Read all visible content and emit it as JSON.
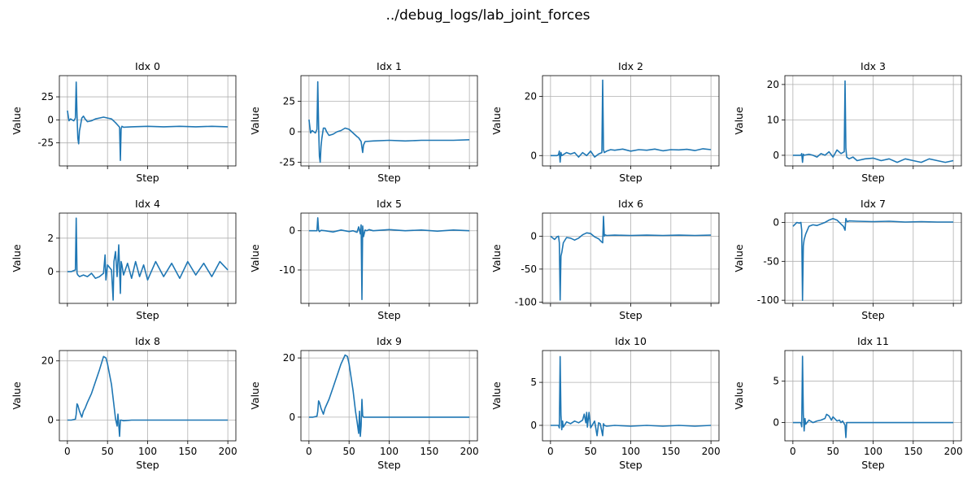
{
  "figure_title": "../debug_logs/lab_joint_forces",
  "chart_data": [
    {
      "type": "line",
      "title": "Idx 0",
      "xlabel": "Step",
      "ylabel": "Value",
      "xlim": [
        -10,
        210
      ],
      "ylim": [
        -50,
        48
      ],
      "xticks": [
        0,
        50,
        100,
        150,
        200
      ],
      "yticks": [
        -25,
        0,
        25
      ],
      "grid": true,
      "line_color": "#1f77b4",
      "x": [
        0,
        2,
        4,
        6,
        8,
        10,
        11,
        12,
        13,
        14,
        15,
        16,
        18,
        20,
        22,
        25,
        30,
        35,
        40,
        45,
        50,
        55,
        60,
        62,
        65,
        66,
        67,
        68,
        70,
        80,
        100,
        120,
        140,
        160,
        180,
        200
      ],
      "values": [
        10,
        -1,
        1,
        0,
        -1,
        2,
        41,
        5,
        -20,
        -26,
        -12,
        -8,
        2,
        4,
        1,
        -2,
        -1,
        1,
        2,
        3,
        2,
        1,
        -3,
        -5,
        -8,
        -44,
        -10,
        -7,
        -8,
        -7.5,
        -7,
        -7.5,
        -7,
        -7.5,
        -7,
        -7.5
      ]
    },
    {
      "type": "line",
      "title": "Idx 1",
      "xlabel": "Step",
      "ylabel": "Value",
      "xlim": [
        -10,
        210
      ],
      "ylim": [
        -28,
        46
      ],
      "xticks": [
        0,
        50,
        100,
        150,
        200
      ],
      "yticks": [
        -25,
        0,
        25
      ],
      "grid": true,
      "line_color": "#1f77b4",
      "x": [
        0,
        2,
        4,
        6,
        8,
        10,
        11,
        12,
        13,
        14,
        15,
        16,
        18,
        20,
        22,
        25,
        30,
        35,
        40,
        45,
        50,
        55,
        60,
        62,
        65,
        67,
        68,
        70,
        80,
        100,
        120,
        140,
        160,
        180,
        200
      ],
      "values": [
        10,
        -1,
        1,
        0,
        -1,
        2,
        41,
        5,
        -20,
        -25,
        -12,
        -6,
        3,
        3,
        0,
        -3,
        -2,
        0,
        1,
        3,
        2,
        -1,
        -4,
        -5,
        -8,
        -17,
        -11,
        -8,
        -7.5,
        -7,
        -7.5,
        -7,
        -7,
        -7,
        -6.5
      ]
    },
    {
      "type": "line",
      "title": "Idx 2",
      "xlabel": "Step",
      "ylabel": "Value",
      "xlim": [
        -10,
        210
      ],
      "ylim": [
        -3.5,
        27
      ],
      "xticks": [
        0,
        50,
        100,
        150,
        200
      ],
      "yticks": [
        0,
        20
      ],
      "grid": true,
      "line_color": "#1f77b4",
      "x": [
        0,
        8,
        10,
        11,
        12,
        13,
        14,
        20,
        25,
        30,
        35,
        40,
        45,
        50,
        55,
        60,
        64,
        65,
        66,
        67,
        70,
        75,
        80,
        90,
        100,
        110,
        120,
        130,
        140,
        150,
        160,
        170,
        180,
        190,
        200
      ],
      "values": [
        0,
        0,
        0.3,
        1.5,
        -2.2,
        1,
        0,
        1,
        0.5,
        1,
        -0.5,
        1,
        0,
        1.5,
        -0.5,
        0.5,
        1,
        25.5,
        2,
        1,
        1.5,
        2,
        1.8,
        2.2,
        1.5,
        2,
        1.8,
        2.2,
        1.6,
        2,
        1.9,
        2.1,
        1.7,
        2.3,
        2
      ]
    },
    {
      "type": "line",
      "title": "Idx 3",
      "xlabel": "Step",
      "ylabel": "Value",
      "xlim": [
        -10,
        210
      ],
      "ylim": [
        -3,
        22.5
      ],
      "xticks": [
        0,
        50,
        100,
        150,
        200
      ],
      "yticks": [
        0,
        10,
        20
      ],
      "grid": true,
      "line_color": "#1f77b4",
      "x": [
        0,
        10,
        11,
        12,
        13,
        14,
        20,
        25,
        30,
        35,
        40,
        45,
        50,
        55,
        60,
        64,
        65,
        66,
        67,
        70,
        75,
        80,
        90,
        100,
        110,
        120,
        130,
        140,
        150,
        160,
        170,
        180,
        190,
        200
      ],
      "values": [
        0,
        0,
        0.5,
        -2,
        0.3,
        0,
        0.3,
        0,
        -0.5,
        0.5,
        0,
        1,
        -0.5,
        1.5,
        0.5,
        1,
        21,
        2,
        -0.5,
        -1,
        -0.5,
        -1.5,
        -1,
        -0.8,
        -1.5,
        -1,
        -2,
        -1,
        -1.5,
        -2,
        -1,
        -1.5,
        -2,
        -1.5
      ]
    },
    {
      "type": "line",
      "title": "Idx 4",
      "xlabel": "Step",
      "ylabel": "Value",
      "xlim": [
        -10,
        210
      ],
      "ylim": [
        -1.9,
        3.5
      ],
      "xticks": [
        0,
        50,
        100,
        150,
        200
      ],
      "yticks": [
        0,
        2
      ],
      "grid": true,
      "line_color": "#1f77b4",
      "x": [
        0,
        5,
        10,
        11,
        12,
        13,
        15,
        20,
        25,
        30,
        35,
        40,
        45,
        47,
        48,
        50,
        55,
        57,
        58,
        60,
        62,
        64,
        66,
        67,
        68,
        70,
        75,
        80,
        85,
        90,
        95,
        100,
        110,
        120,
        130,
        140,
        150,
        160,
        170,
        180,
        190,
        200
      ],
      "values": [
        0,
        0,
        0.1,
        3.2,
        -0.1,
        -0.2,
        -0.3,
        -0.2,
        -0.3,
        -0.1,
        -0.4,
        -0.3,
        -0.1,
        1,
        -0.5,
        0.4,
        0.1,
        -1.7,
        0.6,
        1.2,
        -0.3,
        1.6,
        -1.3,
        0.6,
        0.4,
        -0.2,
        0.5,
        -0.4,
        0.6,
        -0.3,
        0.4,
        -0.5,
        0.6,
        -0.3,
        0.5,
        -0.4,
        0.6,
        -0.2,
        0.5,
        -0.3,
        0.6,
        0.1
      ]
    },
    {
      "type": "line",
      "title": "Idx 5",
      "xlabel": "Step",
      "ylabel": "Value",
      "xlim": [
        -10,
        210
      ],
      "ylim": [
        -18.5,
        4.5
      ],
      "xticks": [
        0,
        50,
        100,
        150,
        200
      ],
      "yticks": [
        -10,
        0
      ],
      "grid": true,
      "line_color": "#1f77b4",
      "x": [
        0,
        10,
        11,
        12,
        13,
        15,
        20,
        30,
        40,
        50,
        55,
        60,
        62,
        64,
        65,
        66,
        67,
        68,
        70,
        72,
        75,
        80,
        100,
        120,
        140,
        160,
        180,
        200
      ],
      "values": [
        0,
        0,
        3.3,
        0.2,
        -0.2,
        0.1,
        0,
        -0.3,
        0.2,
        -0.2,
        0,
        -0.4,
        1,
        -0.8,
        1.5,
        -17.5,
        1.2,
        -1.5,
        0.2,
        0,
        0.3,
        0,
        0.3,
        0,
        0.2,
        -0.1,
        0.2,
        0
      ]
    },
    {
      "type": "line",
      "title": "Idx 6",
      "xlabel": "Step",
      "ylabel": "Value",
      "xlim": [
        -10,
        210
      ],
      "ylim": [
        -102,
        35
      ],
      "xticks": [
        0,
        50,
        100,
        150,
        200
      ],
      "yticks": [
        -100,
        -50,
        0
      ],
      "grid": true,
      "line_color": "#1f77b4",
      "x": [
        0,
        5,
        8,
        10,
        11,
        12,
        13,
        14,
        16,
        20,
        25,
        30,
        35,
        40,
        45,
        50,
        55,
        60,
        63,
        65,
        66,
        67,
        68,
        70,
        80,
        100,
        120,
        140,
        160,
        180,
        200
      ],
      "values": [
        0,
        -5,
        -1,
        0,
        -10,
        -97,
        -30,
        -25,
        -10,
        -2,
        -3,
        -6,
        -3,
        2,
        5,
        4,
        -1,
        -4,
        -8,
        -10,
        30,
        0,
        2,
        1,
        1.5,
        1,
        1.5,
        1,
        1.5,
        1,
        1.5
      ]
    },
    {
      "type": "line",
      "title": "Idx 7",
      "xlabel": "Step",
      "ylabel": "Value",
      "xlim": [
        -10,
        210
      ],
      "ylim": [
        -104,
        12
      ],
      "xticks": [
        0,
        50,
        100,
        150,
        200
      ],
      "yticks": [
        -100,
        -50,
        0
      ],
      "grid": true,
      "line_color": "#1f77b4",
      "x": [
        0,
        3,
        5,
        8,
        10,
        11,
        12,
        13,
        14,
        16,
        20,
        25,
        30,
        35,
        40,
        45,
        50,
        55,
        60,
        63,
        65,
        66,
        67,
        68,
        70,
        80,
        100,
        120,
        140,
        160,
        180,
        200
      ],
      "values": [
        -5,
        -2,
        0,
        -1,
        0,
        -10,
        -100,
        -30,
        -22,
        -15,
        -5,
        -3,
        -4,
        -2,
        0,
        3,
        5,
        3,
        -2,
        -5,
        -10,
        5,
        2,
        1,
        2,
        1.5,
        1,
        1.5,
        0.5,
        1,
        0.5,
        0.5
      ]
    },
    {
      "type": "line",
      "title": "Idx 8",
      "xlabel": "Step",
      "ylabel": "Value",
      "xlim": [
        -10,
        210
      ],
      "ylim": [
        -7,
        23.5
      ],
      "xticks": [
        0,
        50,
        100,
        150,
        200
      ],
      "yticks": [
        0,
        20
      ],
      "grid": true,
      "line_color": "#1f77b4",
      "x": [
        0,
        5,
        10,
        11,
        12,
        13,
        15,
        18,
        20,
        22,
        25,
        30,
        35,
        40,
        45,
        48,
        50,
        55,
        58,
        60,
        62,
        63,
        64,
        65,
        66,
        67,
        70,
        80,
        100,
        120,
        140,
        160,
        180,
        200
      ],
      "values": [
        0,
        0,
        0.3,
        2,
        5.5,
        5,
        3,
        1,
        3,
        4,
        6,
        9,
        13,
        17,
        21.5,
        21,
        19,
        12,
        5,
        0.5,
        -2,
        2,
        -1.5,
        -5.5,
        0,
        0,
        -0.2,
        0,
        0,
        0,
        0,
        0,
        0,
        0
      ]
    },
    {
      "type": "line",
      "title": "Idx 9",
      "xlabel": "Step",
      "ylabel": "Value",
      "xlim": [
        -10,
        210
      ],
      "ylim": [
        -8,
        22.5
      ],
      "xticks": [
        0,
        50,
        100,
        150,
        200
      ],
      "yticks": [
        0,
        20
      ],
      "grid": true,
      "line_color": "#1f77b4",
      "x": [
        0,
        5,
        10,
        11,
        12,
        13,
        15,
        18,
        20,
        25,
        30,
        35,
        40,
        45,
        48,
        50,
        55,
        58,
        60,
        62,
        63,
        64,
        65,
        66,
        67,
        68,
        70,
        80,
        100,
        120,
        140,
        160,
        180,
        200
      ],
      "values": [
        0,
        0,
        0.3,
        2,
        5.5,
        5,
        3,
        1,
        3,
        6,
        10,
        14,
        18,
        21,
        20.5,
        18,
        9,
        2,
        -1.5,
        -5.5,
        2,
        -6.5,
        -3,
        6,
        0.5,
        0,
        0,
        0,
        0,
        0,
        0,
        0,
        0,
        0
      ]
    },
    {
      "type": "line",
      "title": "Idx 10",
      "xlabel": "Step",
      "ylabel": "Value",
      "xlim": [
        -10,
        210
      ],
      "ylim": [
        -1.8,
        8.7
      ],
      "xticks": [
        0,
        50,
        100,
        150,
        200
      ],
      "yticks": [
        0,
        5
      ],
      "grid": true,
      "line_color": "#1f77b4",
      "x": [
        0,
        8,
        10,
        11,
        12,
        13,
        14,
        15,
        16,
        20,
        25,
        30,
        35,
        40,
        42,
        44,
        45,
        46,
        48,
        50,
        55,
        58,
        60,
        62,
        65,
        66,
        67,
        70,
        80,
        100,
        120,
        140,
        160,
        180,
        200
      ],
      "values": [
        0,
        0,
        0,
        -0.3,
        8,
        1.2,
        -0.5,
        0.5,
        -0.2,
        0.4,
        0.2,
        0.5,
        0.3,
        0.6,
        1.3,
        0.3,
        1.5,
        -0.2,
        1.5,
        -0.3,
        0.5,
        -1.2,
        0.3,
        0.2,
        -1.2,
        0.2,
        0,
        -0.1,
        0,
        -0.1,
        0,
        -0.1,
        0,
        -0.1,
        0
      ]
    },
    {
      "type": "line",
      "title": "Idx 11",
      "xlabel": "Step",
      "ylabel": "Value",
      "xlim": [
        -10,
        210
      ],
      "ylim": [
        -2.2,
        8.7
      ],
      "xticks": [
        0,
        50,
        100,
        150,
        200
      ],
      "yticks": [
        0,
        5
      ],
      "grid": true,
      "line_color": "#1f77b4",
      "x": [
        0,
        8,
        10,
        11,
        12,
        13,
        14,
        15,
        16,
        20,
        25,
        30,
        35,
        40,
        42,
        45,
        48,
        50,
        55,
        58,
        60,
        62,
        65,
        66,
        67,
        68,
        70,
        80,
        100,
        120,
        140,
        160,
        180,
        200
      ],
      "values": [
        0,
        0,
        0,
        -0.5,
        8,
        1,
        -1,
        0.5,
        -0.2,
        0.3,
        0,
        0.2,
        0.3,
        0.5,
        1,
        0.8,
        0.3,
        0.7,
        0.2,
        0.3,
        0,
        0.2,
        -0.3,
        -1.8,
        0,
        0,
        0,
        0,
        0,
        0,
        0,
        0,
        0,
        0
      ]
    }
  ]
}
